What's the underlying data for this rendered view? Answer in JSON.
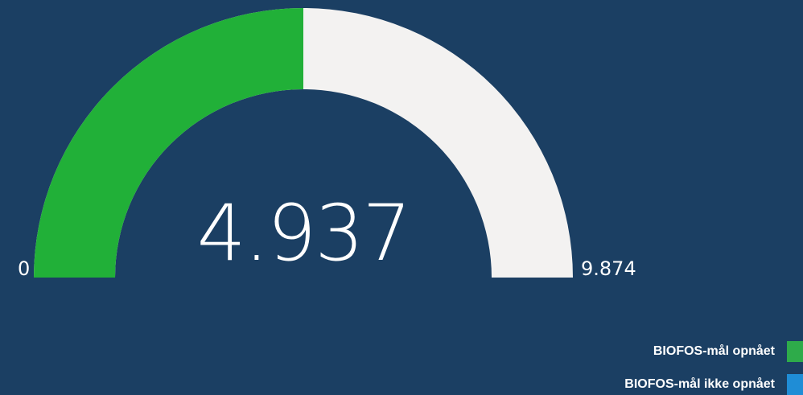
{
  "chart_data": {
    "type": "gauge",
    "values": [
      4937
    ],
    "value_labels": [
      "4.937"
    ],
    "ylim": [
      0,
      9874
    ],
    "yticks": [
      0,
      {
        "value": 9874,
        "label": "9.874"
      }
    ],
    "color": "#21b038",
    "track_color": "#f3f2f1",
    "legend": [
      {
        "name": "BIOFOS-mål opnået",
        "color": "#2eab4a"
      },
      {
        "name": "BIOFOS-mål ikke opnået",
        "color": "#1f8dd6"
      }
    ]
  }
}
